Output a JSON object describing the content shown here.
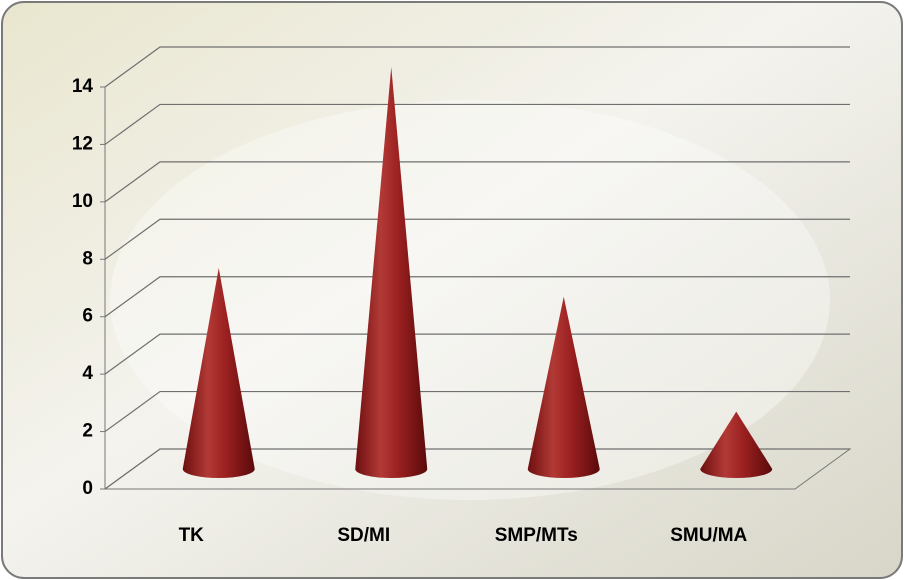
{
  "chart_data": {
    "type": "cone",
    "categories": [
      "TK",
      "SD/MI",
      "SMP/MTs",
      "SMU/MA"
    ],
    "values": [
      7,
      14,
      6,
      2
    ],
    "color": "#9b2020",
    "ylim": [
      0,
      14
    ],
    "yticks": [
      0,
      2,
      4,
      6,
      8,
      10,
      12,
      14
    ],
    "grid": true
  }
}
